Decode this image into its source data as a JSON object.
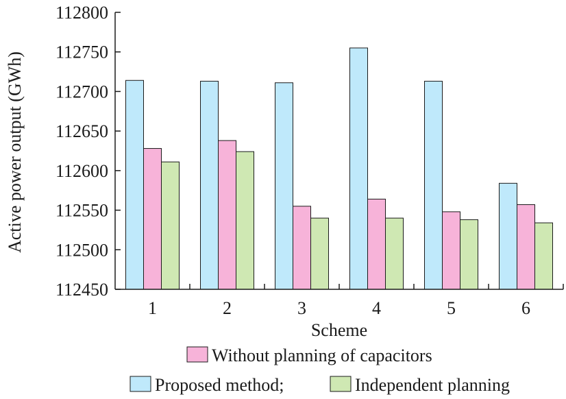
{
  "chart_data": {
    "type": "bar",
    "title": "",
    "xlabel": "Scheme",
    "ylabel": "Active power output (GWh)",
    "categories": [
      "1",
      "2",
      "3",
      "4",
      "5",
      "6"
    ],
    "ylim": [
      112450,
      112800
    ],
    "yticks": [
      112450,
      112500,
      112550,
      112600,
      112650,
      112700,
      112750,
      112800
    ],
    "series": [
      {
        "name": "Proposed method;",
        "color": "#bfe9fb",
        "values": [
          112714,
          112713,
          112711,
          112755,
          112713,
          112584
        ]
      },
      {
        "name": "Without planning of capacitors",
        "color": "#f7b3d9",
        "values": [
          112628,
          112638,
          112555,
          112564,
          112548,
          112557
        ]
      },
      {
        "name": "Independent planning",
        "color": "#cfe8b3",
        "values": [
          112611,
          112624,
          112540,
          112540,
          112538,
          112534
        ]
      }
    ],
    "grid": false,
    "legend_position": "bottom"
  }
}
